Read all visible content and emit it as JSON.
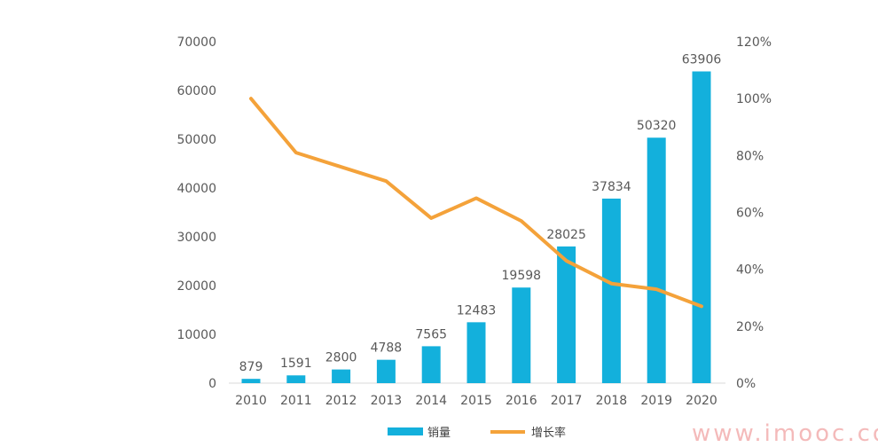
{
  "chart_data": {
    "type": "bar",
    "categories": [
      "2010",
      "2011",
      "2012",
      "2013",
      "2014",
      "2015",
      "2016",
      "2017",
      "2018",
      "2019",
      "2020"
    ],
    "series": [
      {
        "name": "销量",
        "type": "bar",
        "axis": "left",
        "color": "#13b0dc",
        "values": [
          879,
          1591,
          2800,
          4788,
          7565,
          12483,
          19598,
          28025,
          37834,
          50320,
          63906
        ],
        "data_labels": [
          "879",
          "1591",
          "2800",
          "4788",
          "7565",
          "12483",
          "19598",
          "28025",
          "37834",
          "50320",
          "63906"
        ]
      },
      {
        "name": "增长率",
        "type": "line",
        "axis": "right",
        "color": "#f4a23a",
        "values": [
          100,
          81,
          76,
          71,
          58,
          65,
          57,
          43,
          35,
          33,
          27
        ]
      }
    ],
    "y_left": {
      "min": 0,
      "max": 70000,
      "ticks": [
        "0",
        "10000",
        "20000",
        "30000",
        "40000",
        "50000",
        "60000",
        "70000"
      ]
    },
    "y_right": {
      "min": 0,
      "max": 120,
      "unit": "%",
      "ticks": [
        "0%",
        "20%",
        "40%",
        "60%",
        "80%",
        "100%",
        "120%"
      ]
    },
    "legend": {
      "placement": "bottom",
      "entries": [
        "销量",
        "增长率"
      ]
    },
    "grid": false,
    "title": ""
  },
  "watermark": "www.imooc.co"
}
